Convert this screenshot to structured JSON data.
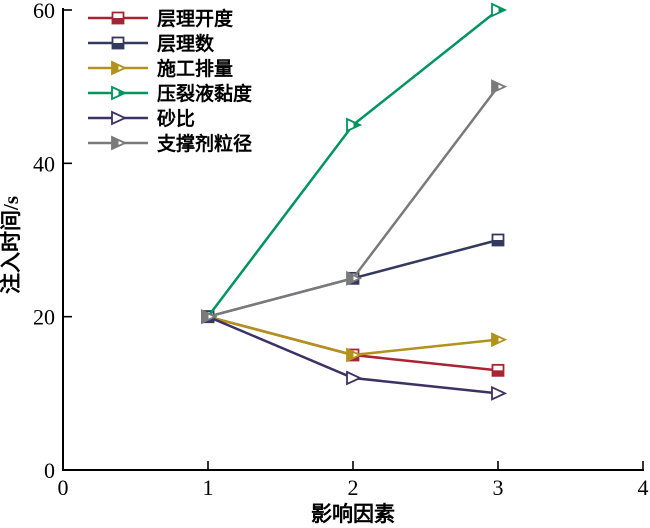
{
  "figure": {
    "background": "#ffffff",
    "axis_color": "#000000"
  },
  "chart_data": {
    "type": "line",
    "title": "",
    "xlabel": "影响因素",
    "ylabel": "注入时间/s",
    "x": [
      1,
      2,
      3
    ],
    "xlim": [
      0,
      4
    ],
    "ylim": [
      0,
      60
    ],
    "xticks": [
      0,
      1,
      2,
      3,
      4
    ],
    "yticks": [
      0,
      20,
      40,
      60
    ],
    "grid": false,
    "legend_position": "top-left-inside",
    "series": [
      {
        "name": "层理开度",
        "color": "#a82333",
        "marker": "square-half",
        "values": [
          20,
          15,
          13
        ]
      },
      {
        "name": "层理数",
        "color": "#34395e",
        "marker": "square-half",
        "values": [
          20,
          25,
          30
        ]
      },
      {
        "name": "施工排量",
        "color": "#b2921d",
        "marker": "triangle-half",
        "values": [
          20,
          15,
          17
        ]
      },
      {
        "name": "压裂液黏度",
        "color": "#00945f",
        "marker": "triangle-half-right",
        "values": [
          20,
          45,
          60
        ]
      },
      {
        "name": "砂比",
        "color": "#3d3266",
        "marker": "triangle-open",
        "values": [
          20,
          12,
          10
        ]
      },
      {
        "name": "支撑剂粒径",
        "color": "#7a7a7a",
        "marker": "triangle-half",
        "values": [
          20,
          25,
          50
        ]
      }
    ]
  }
}
